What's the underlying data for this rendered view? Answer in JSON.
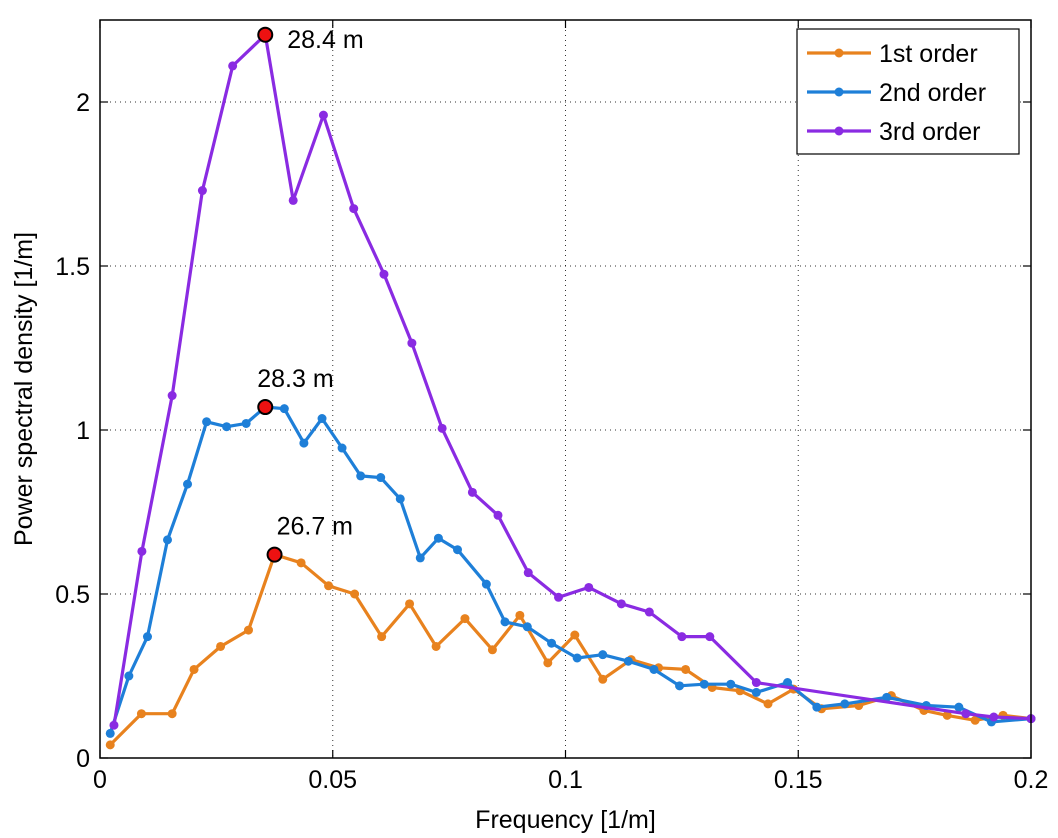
{
  "chart_data": {
    "type": "line",
    "title": "",
    "xlabel": "Frequency [1/m]",
    "ylabel": "Power spectral density [1/m]",
    "xlim": [
      0,
      0.2
    ],
    "ylim": [
      0,
      2.25
    ],
    "xticks": [
      0,
      0.05,
      0.1,
      0.15,
      0.2
    ],
    "xtick_labels": [
      "0",
      "0.05",
      "0.1",
      "0.15",
      "0.2"
    ],
    "yticks": [
      0,
      0.5,
      1,
      1.5,
      2
    ],
    "ytick_labels": [
      "0",
      "0.5",
      "1",
      "1.5",
      "2"
    ],
    "grid": true,
    "legend_position": "top-right",
    "series": [
      {
        "name": "1st order",
        "color": "#E8821E",
        "x": [
          0.0022,
          0.0089,
          0.0155,
          0.0202,
          0.0259,
          0.0319,
          0.0375,
          0.0432,
          0.0491,
          0.0547,
          0.0605,
          0.0665,
          0.0722,
          0.0784,
          0.0843,
          0.0902,
          0.0962,
          0.102,
          0.108,
          0.1141,
          0.12,
          0.1258,
          0.1315,
          0.1375,
          0.1435,
          0.149,
          0.155,
          0.163,
          0.17,
          0.177,
          0.182,
          0.188,
          0.194,
          0.2
        ],
        "values": [
          0.04,
          0.135,
          0.135,
          0.27,
          0.34,
          0.39,
          0.62,
          0.595,
          0.525,
          0.5,
          0.37,
          0.47,
          0.34,
          0.425,
          0.33,
          0.435,
          0.29,
          0.375,
          0.24,
          0.3,
          0.275,
          0.27,
          0.215,
          0.205,
          0.165,
          0.21,
          0.15,
          0.16,
          0.19,
          0.145,
          0.13,
          0.115,
          0.13,
          0.12
        ]
      },
      {
        "name": "2nd order",
        "color": "#1E7FD8",
        "x": [
          0.0022,
          0.0062,
          0.0102,
          0.0145,
          0.0188,
          0.0229,
          0.0272,
          0.0314,
          0.0355,
          0.0396,
          0.0438,
          0.0477,
          0.052,
          0.056,
          0.0603,
          0.0645,
          0.0688,
          0.0727,
          0.0768,
          0.083,
          0.087,
          0.0918,
          0.097,
          0.1025,
          0.108,
          0.1135,
          0.119,
          0.1245,
          0.1298,
          0.1355,
          0.141,
          0.1477,
          0.154,
          0.16,
          0.169,
          0.1775,
          0.1845,
          0.1915,
          0.2
        ],
        "values": [
          0.075,
          0.25,
          0.37,
          0.665,
          0.835,
          1.025,
          1.01,
          1.02,
          1.07,
          1.065,
          0.96,
          1.035,
          0.945,
          0.86,
          0.855,
          0.79,
          0.61,
          0.67,
          0.635,
          0.53,
          0.415,
          0.4,
          0.35,
          0.305,
          0.315,
          0.295,
          0.27,
          0.22,
          0.225,
          0.225,
          0.2,
          0.23,
          0.155,
          0.165,
          0.185,
          0.16,
          0.155,
          0.11,
          0.12
        ]
      },
      {
        "name": "3rd order",
        "color": "#8A2BE2",
        "x": [
          0.003,
          0.009,
          0.0155,
          0.022,
          0.0285,
          0.0355,
          0.0415,
          0.048,
          0.0545,
          0.061,
          0.067,
          0.0735,
          0.08,
          0.0855,
          0.092,
          0.0985,
          0.105,
          0.112,
          0.118,
          0.125,
          0.131,
          0.141,
          0.186,
          0.192,
          0.2
        ],
        "values": [
          0.1,
          0.63,
          1.105,
          1.73,
          2.11,
          2.205,
          1.7,
          1.96,
          1.675,
          1.475,
          1.265,
          1.005,
          0.81,
          0.74,
          0.565,
          0.49,
          0.52,
          0.47,
          0.445,
          0.37,
          0.37,
          0.23,
          0.135,
          0.125,
          0.12
        ]
      }
    ],
    "annotations": [
      {
        "label": "28.4 m",
        "x": 0.0355,
        "y": 2.205,
        "series": "3rd order"
      },
      {
        "label": "28.3 m",
        "x": 0.0355,
        "y": 1.07,
        "series": "2nd order"
      },
      {
        "label": "26.7 m",
        "x": 0.0375,
        "y": 0.62,
        "series": "1st order"
      }
    ],
    "peak_marker_color": "#EE1111"
  }
}
